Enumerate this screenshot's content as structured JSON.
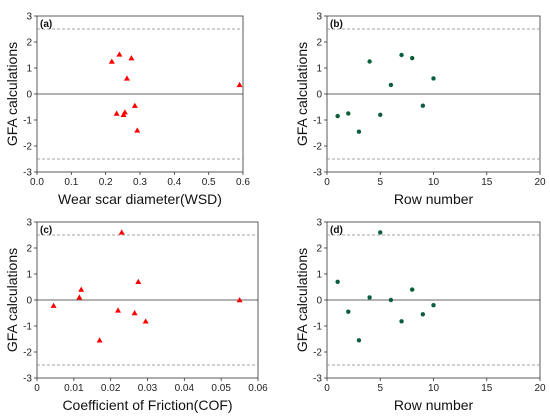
{
  "chart_data": [
    {
      "id": "a",
      "panel_label": "(a)",
      "type": "scatter",
      "xlabel": "Wear scar diameter(WSD)",
      "ylabel": "GFA calculations",
      "xlim": [
        0.0,
        0.6
      ],
      "ylim": [
        -3,
        3
      ],
      "xticks": [
        "0.0",
        "0.1",
        "0.2",
        "0.3",
        "0.4",
        "0.5",
        "0.6"
      ],
      "yticks": [
        "-3",
        "-2",
        "-1",
        "0",
        "1",
        "2",
        "3"
      ],
      "reference_lines": [
        0,
        2.5,
        -2.5
      ],
      "marker": "triangle",
      "marker_color": "#ff0000",
      "points": [
        {
          "x": 0.218,
          "y": 1.25
        },
        {
          "x": 0.232,
          "y": -0.75
        },
        {
          "x": 0.24,
          "y": 1.52
        },
        {
          "x": 0.252,
          "y": -0.8
        },
        {
          "x": 0.256,
          "y": -0.7
        },
        {
          "x": 0.262,
          "y": 0.6
        },
        {
          "x": 0.275,
          "y": 1.38
        },
        {
          "x": 0.285,
          "y": -0.45
        },
        {
          "x": 0.292,
          "y": -1.4
        },
        {
          "x": 0.59,
          "y": 0.35
        }
      ]
    },
    {
      "id": "b",
      "panel_label": "(b)",
      "type": "scatter",
      "xlabel": "Row number",
      "ylabel": "GFA calculations",
      "xlim": [
        0,
        20
      ],
      "ylim": [
        -3,
        3
      ],
      "xticks": [
        "0",
        "5",
        "10",
        "15",
        "20"
      ],
      "yticks": [
        "-3",
        "-2",
        "-1",
        "0",
        "1",
        "2",
        "3"
      ],
      "reference_lines": [
        0,
        2.5,
        -2.5
      ],
      "marker": "circle",
      "marker_color": "#0b5d3b",
      "points": [
        {
          "x": 1,
          "y": -0.85
        },
        {
          "x": 2,
          "y": -0.75
        },
        {
          "x": 3,
          "y": -1.45
        },
        {
          "x": 4,
          "y": 1.25
        },
        {
          "x": 5,
          "y": -0.8
        },
        {
          "x": 6,
          "y": 0.35
        },
        {
          "x": 7,
          "y": 1.5
        },
        {
          "x": 8,
          "y": 1.38
        },
        {
          "x": 9,
          "y": -0.45
        },
        {
          "x": 10,
          "y": 0.6
        }
      ]
    },
    {
      "id": "c",
      "panel_label": "(c)",
      "type": "scatter",
      "xlabel": "Coefficient of Friction(COF)",
      "ylabel": "GFA calculations",
      "xlim": [
        0,
        0.06
      ],
      "ylim": [
        -3,
        3
      ],
      "xticks": [
        "0",
        "0.01",
        "0.02",
        "0.03",
        "0.04",
        "0.05",
        "0.06"
      ],
      "yticks": [
        "-3",
        "-2",
        "-1",
        "0",
        "1",
        "2",
        "3"
      ],
      "reference_lines": [
        0,
        2.5,
        -2.5
      ],
      "marker": "triangle",
      "marker_color": "#ff0000",
      "points": [
        {
          "x": 0.0045,
          "y": -0.22
        },
        {
          "x": 0.0115,
          "y": 0.1
        },
        {
          "x": 0.012,
          "y": 0.4
        },
        {
          "x": 0.017,
          "y": -1.55
        },
        {
          "x": 0.022,
          "y": -0.4
        },
        {
          "x": 0.023,
          "y": 2.6
        },
        {
          "x": 0.0265,
          "y": -0.5
        },
        {
          "x": 0.0275,
          "y": 0.7
        },
        {
          "x": 0.0295,
          "y": -0.82
        },
        {
          "x": 0.055,
          "y": 0.0
        }
      ]
    },
    {
      "id": "d",
      "panel_label": "(d)",
      "type": "scatter",
      "xlabel": "Row number",
      "ylabel": "GFA calculations",
      "xlim": [
        0,
        20
      ],
      "ylim": [
        -3,
        3
      ],
      "xticks": [
        "0",
        "5",
        "10",
        "15",
        "20"
      ],
      "yticks": [
        "-3",
        "-2",
        "-1",
        "0",
        "1",
        "2",
        "3"
      ],
      "reference_lines": [
        0,
        2.5,
        -2.5
      ],
      "marker": "circle",
      "marker_color": "#0b5d3b",
      "points": [
        {
          "x": 1,
          "y": 0.7
        },
        {
          "x": 2,
          "y": -0.45
        },
        {
          "x": 3,
          "y": -1.55
        },
        {
          "x": 4,
          "y": 0.1
        },
        {
          "x": 5,
          "y": 2.6
        },
        {
          "x": 6,
          "y": 0.0
        },
        {
          "x": 7,
          "y": -0.82
        },
        {
          "x": 8,
          "y": 0.4
        },
        {
          "x": 9,
          "y": -0.55
        },
        {
          "x": 10,
          "y": -0.2
        }
      ]
    }
  ]
}
